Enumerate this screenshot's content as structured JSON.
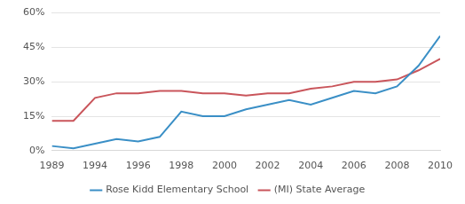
{
  "chart_data": {
    "type": "line",
    "categories": [
      "1989",
      null,
      "1994",
      null,
      "1996",
      null,
      "1998",
      null,
      "2000",
      null,
      "2002",
      null,
      "2004",
      null,
      "2006",
      null,
      "2008",
      null,
      "2010"
    ],
    "series": [
      {
        "name": "Rose Kidd Elementary School",
        "color": "#3a8fc6",
        "values": [
          2,
          1,
          3,
          5,
          4,
          6,
          17,
          15,
          15,
          18,
          20,
          22,
          20,
          23,
          26,
          25,
          28,
          37,
          50
        ]
      },
      {
        "name": "(MI) State Average",
        "color": "#c9555b",
        "values": [
          13,
          13,
          23,
          25,
          25,
          26,
          26,
          25,
          25,
          24,
          25,
          25,
          27,
          28,
          30,
          30,
          31,
          35,
          40
        ]
      }
    ],
    "ylim": [
      0,
      60
    ],
    "yticks": [
      {
        "value": 0,
        "label": "0%"
      },
      {
        "value": 15,
        "label": "15%"
      },
      {
        "value": 30,
        "label": "30%"
      },
      {
        "value": 45,
        "label": "45%"
      },
      {
        "value": 60,
        "label": "60%"
      }
    ],
    "grid": true,
    "legend": "bottom"
  }
}
